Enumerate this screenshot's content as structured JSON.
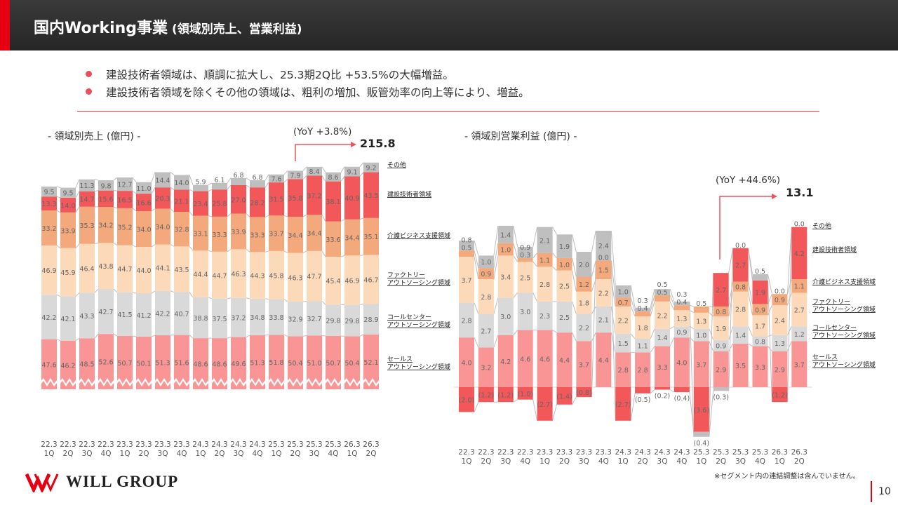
{
  "header": {
    "title_main": "国内Working事業",
    "title_sub": " (領域別売上、営業利益)"
  },
  "bullets": [
    "建設技術者領域は、順調に拡大し、25.3期2Q比 +53.5%の大幅増益。",
    "建設技術者領域を除くその他の領域は、粗利の増加、販管効率の向上等により、増益。"
  ],
  "colors": {
    "sales": "#f99595",
    "call": "#d9d9d9",
    "factory": "#fcd9b8",
    "care": "#f4a97c",
    "construction": "#f2575a",
    "other": "#bfbfbf",
    "accent": "#e60012"
  },
  "chart_data": [
    {
      "type": "bar",
      "stacked": true,
      "title": "- 領域別売上 (億円) -",
      "unit": "億円",
      "axis_break": true,
      "categories": [
        "22.3 1Q",
        "22.3 2Q",
        "22.3 3Q",
        "22.3 4Q",
        "23.3 1Q",
        "23.3 2Q",
        "23.3 3Q",
        "23.3 4Q",
        "24.3 1Q",
        "24.3 2Q",
        "24.3 3Q",
        "24.3 4Q",
        "25.3 1Q",
        "25.3 2Q",
        "25.3 3Q",
        "25.3 4Q",
        "26.3 1Q",
        "26.3 2Q"
      ],
      "series": [
        {
          "key": "sales",
          "name": "セールス アウトソーシング領域",
          "values": [
            47.6,
            46.2,
            48.5,
            52.6,
            50.7,
            50.1,
            51.3,
            51.6,
            48.6,
            48.6,
            49.6,
            51.3,
            51.8,
            50.4,
            51.0,
            50.7,
            50.4,
            52.1
          ]
        },
        {
          "key": "call",
          "name": "コールセンター アウトソーシング領域",
          "values": [
            42.2,
            42.1,
            43.3,
            42.7,
            41.5,
            41.2,
            42.2,
            40.7,
            38.8,
            37.5,
            37.2,
            34.8,
            33.8,
            32.9,
            32.7,
            29.8,
            29.8,
            28.9
          ]
        },
        {
          "key": "factory",
          "name": "ファクトリー アウトソーシング領域",
          "values": [
            46.9,
            45.9,
            46.4,
            43.8,
            44.7,
            44.0,
            44.1,
            43.5,
            44.4,
            44.7,
            46.3,
            44.3,
            45.8,
            46.3,
            47.7,
            45.4,
            46.9,
            46.7
          ]
        },
        {
          "key": "care",
          "name": "介護ビジネス支援領域",
          "values": [
            33.2,
            33.9,
            35.3,
            34.2,
            35.2,
            34.0,
            34.0,
            32.8,
            33.1,
            33.3,
            33.9,
            33.3,
            33.7,
            34.4,
            34.4,
            33.6,
            34.4,
            35.1
          ]
        },
        {
          "key": "construction",
          "name": "建設技術者領域",
          "values": [
            13.3,
            14.0,
            14.7,
            15.6,
            16.5,
            16.6,
            20.3,
            21.1,
            23.4,
            25.8,
            27.0,
            28.2,
            31.5,
            35.8,
            37.2,
            38.1,
            40.9,
            43.5
          ]
        },
        {
          "key": "other",
          "name": "その他",
          "values": [
            9.5,
            9.5,
            11.3,
            9.8,
            12.7,
            11.0,
            14.4,
            14.0,
            5.9,
            6.1,
            6.8,
            6.8,
            7.6,
            7.9,
            8.4,
            8.6,
            9.1,
            9.2
          ]
        }
      ],
      "annotation": {
        "yoy": "(YoY +3.8%)",
        "total": "215.8"
      }
    },
    {
      "type": "bar",
      "stacked": true,
      "title": "- 領域別営業利益 (億円) -",
      "unit": "億円",
      "categories": [
        "22.3 1Q",
        "22.3 2Q",
        "22.3 3Q",
        "22.3 4Q",
        "23.3 1Q",
        "23.3 2Q",
        "23.3 3Q",
        "23.3 4Q",
        "24.3 1Q",
        "24.3 2Q",
        "24.3 3Q",
        "24.3 4Q",
        "25.3 1Q",
        "25.3 2Q",
        "25.3 3Q",
        "25.3 4Q",
        "26.3 1Q",
        "26.3 2Q"
      ],
      "series": [
        {
          "key": "sales",
          "name": "セールス アウトソーシング領域",
          "values": [
            4.0,
            3.2,
            4.2,
            4.6,
            4.6,
            4.4,
            3.7,
            4.4,
            2.8,
            2.8,
            3.3,
            4.0,
            3.7,
            2.9,
            3.5,
            3.3,
            2.9,
            3.7
          ]
        },
        {
          "key": "call",
          "name": "コールセンター アウトソーシング領域",
          "values": [
            2.8,
            2.7,
            3.0,
            3.0,
            2.3,
            2.5,
            2.2,
            2.1,
            1.5,
            1.1,
            1.4,
            0.9,
            1.0,
            0.9,
            1.4,
            0.8,
            1.3,
            1.2
          ]
        },
        {
          "key": "factory",
          "name": "ファクトリー アウトソーシング領域",
          "values": [
            3.7,
            2.8,
            3.4,
            2.5,
            2.8,
            2.5,
            1.8,
            2.2,
            2.2,
            1.8,
            2.2,
            1.3,
            1.3,
            1.9,
            2.8,
            1.7,
            2.4,
            2.7
          ]
        },
        {
          "key": "care",
          "name": "介護ビジネス支援領域",
          "values": [
            0.5,
            0.9,
            1.0,
            0.3,
            1.1,
            1.0,
            1.2,
            1.5,
            0.7,
            0.4,
            0.5,
            0.4,
            0.5,
            0.8,
            0.8,
            0.9,
            0.9,
            1.1
          ]
        },
        {
          "key": "construction",
          "name": "建設技術者領域",
          "values": [
            -2.0,
            -1.2,
            -1.2,
            -1.0,
            -2.7,
            -1.4,
            -0.8,
            0.0,
            -2.7,
            -0.5,
            -0.2,
            -0.4,
            -3.6,
            2.7,
            2.7,
            1.9,
            -1.2,
            4.2
          ]
        },
        {
          "key": "other",
          "name": "その他",
          "values": [
            0.8,
            1.0,
            1.4,
            0.9,
            2.1,
            1.9,
            2.0,
            2.4,
            1.0,
            0.3,
            0.5,
            0.3,
            -0.4,
            -0.3,
            0.0,
            0.5,
            0.0,
            0.0
          ]
        }
      ],
      "annotation": {
        "yoy": "(YoY +44.6%)",
        "total": "13.1"
      }
    }
  ],
  "footer": {
    "logo": "WILL GROUP",
    "note": "※セグメント内の連結調整は含んでいません。",
    "page": "10"
  }
}
